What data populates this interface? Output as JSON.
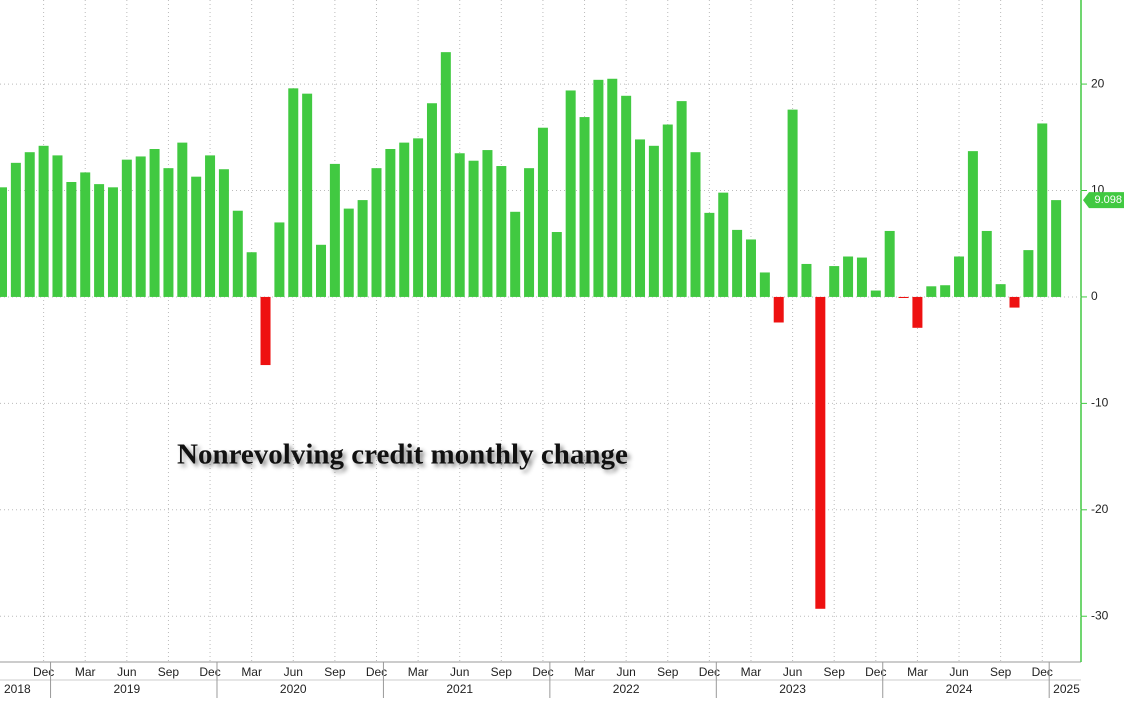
{
  "chart_data": {
    "type": "bar",
    "annotation": "Nonrevolving credit monthly change",
    "categories": [
      null,
      null,
      null,
      "Dec",
      null,
      null,
      "Mar",
      null,
      null,
      "Jun",
      null,
      null,
      "Sep",
      null,
      null,
      "Dec",
      null,
      null,
      "Mar",
      null,
      null,
      "Jun",
      null,
      null,
      "Sep",
      null,
      null,
      "Dec",
      null,
      null,
      "Mar",
      null,
      null,
      "Jun",
      null,
      null,
      "Sep",
      null,
      null,
      "Dec",
      null,
      null,
      "Mar",
      null,
      null,
      "Jun",
      null,
      null,
      "Sep",
      null,
      null,
      "Dec",
      null,
      null,
      "Mar",
      null,
      null,
      "Jun",
      null,
      null,
      "Sep",
      null,
      null,
      "Dec",
      null,
      null,
      "Mar",
      null,
      null,
      "Jun",
      null,
      null,
      "Sep",
      null,
      null,
      "Dec",
      null
    ],
    "years": [
      "2018",
      "2019",
      "2020",
      "2021",
      "2022",
      "2023",
      "2024",
      "2025"
    ],
    "values": [
      10.3,
      12.6,
      13.6,
      14.2,
      13.3,
      10.8,
      11.7,
      10.6,
      10.3,
      12.9,
      13.2,
      13.9,
      12.1,
      14.5,
      11.3,
      13.3,
      12.0,
      8.1,
      4.2,
      -6.4,
      7.0,
      19.6,
      19.1,
      4.9,
      12.5,
      8.3,
      9.1,
      12.1,
      13.9,
      14.5,
      14.9,
      18.2,
      23.0,
      13.5,
      12.8,
      13.8,
      12.3,
      8.0,
      12.1,
      15.9,
      6.1,
      19.4,
      16.9,
      20.4,
      20.5,
      18.9,
      14.8,
      14.2,
      16.2,
      18.4,
      13.6,
      7.9,
      9.8,
      6.3,
      5.4,
      2.3,
      -2.4,
      17.6,
      3.1,
      -29.3,
      2.9,
      3.8,
      3.7,
      0.6,
      6.2,
      -0.1,
      -2.9,
      1.0,
      1.1,
      3.8,
      13.7,
      6.2,
      1.2,
      -1.0,
      4.4,
      16.3,
      9.098
    ],
    "color": "#41c941",
    "negative_color": "#ee1111",
    "ylim": [
      -34.3,
      27.9
    ],
    "yticks": [
      -30,
      -20,
      -10,
      0,
      10,
      20
    ],
    "grid": true
  }
}
